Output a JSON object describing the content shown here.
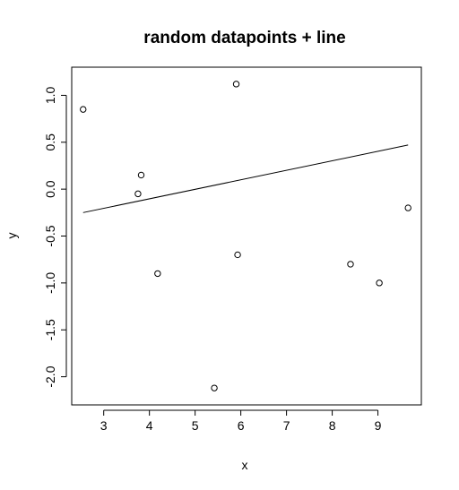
{
  "chart_data": {
    "type": "scatter",
    "title": "random datapoints + line",
    "xlabel": "x",
    "ylabel": "y",
    "xlim": [
      2.3,
      9.95
    ],
    "ylim": [
      -2.3,
      1.3
    ],
    "xticks": [
      3,
      4,
      5,
      6,
      7,
      8,
      9
    ],
    "yticks": [
      -2.0,
      -1.5,
      -1.0,
      -0.5,
      0.0,
      0.5,
      1.0
    ],
    "ytick_labels": [
      "-2.0",
      "-1.5",
      "-1.0",
      "-0.5",
      "0.0",
      "0.5",
      "1.0"
    ],
    "grid": false,
    "legend": "none",
    "points": [
      {
        "x": 2.55,
        "y": 0.85
      },
      {
        "x": 3.75,
        "y": -0.05
      },
      {
        "x": 3.82,
        "y": 0.15
      },
      {
        "x": 4.18,
        "y": -0.9
      },
      {
        "x": 5.42,
        "y": -2.12
      },
      {
        "x": 5.9,
        "y": 1.12
      },
      {
        "x": 5.93,
        "y": -0.7
      },
      {
        "x": 8.4,
        "y": -0.8
      },
      {
        "x": 9.03,
        "y": -1.0
      },
      {
        "x": 9.66,
        "y": -0.2
      }
    ],
    "line": {
      "x1": 2.55,
      "y1": -0.25,
      "x2": 9.66,
      "y2": 0.47
    },
    "colors": {
      "points": "#000000",
      "line": "#000000",
      "axes": "#000000"
    }
  }
}
